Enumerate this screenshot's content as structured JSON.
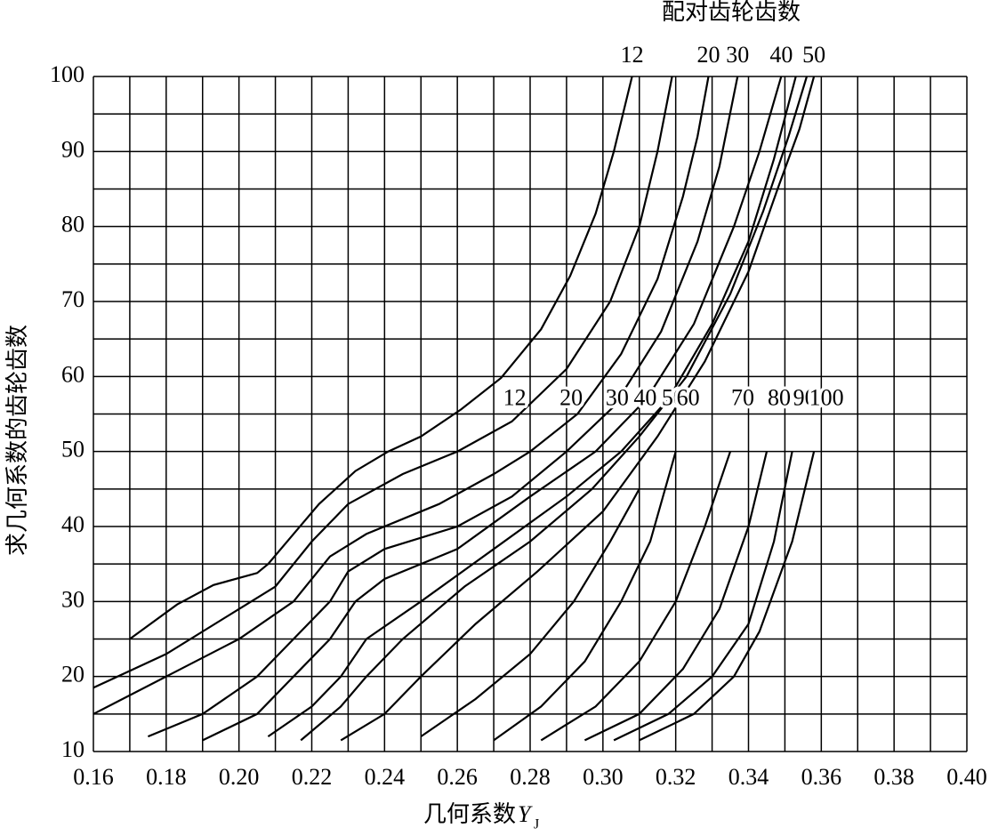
{
  "chart_data": {
    "type": "line",
    "title": "配对齿轮齿数",
    "xlabel": "几何系数",
    "xlabel_symbol": "Y",
    "xlabel_subscript": "J",
    "ylabel": "求几何系数的齿轮齿数",
    "xlim": [
      0.16,
      0.4
    ],
    "ylim": [
      10,
      100
    ],
    "xticks": [
      0.16,
      0.18,
      {
        "value": 0.2,
        "label": "0.20"
      },
      0.22,
      0.24,
      0.26,
      0.28,
      {
        "value": 0.3,
        "label": "0.30"
      },
      0.32,
      0.34,
      0.36,
      0.38,
      {
        "value": 0.4,
        "label": "0.40"
      }
    ],
    "minor_xticks": [
      0.17,
      0.19,
      0.21,
      0.23,
      0.25,
      0.27,
      0.29,
      0.31,
      0.33,
      0.35,
      0.37,
      0.39
    ],
    "yticks": [
      10,
      20,
      30,
      40,
      50,
      60,
      70,
      80,
      90,
      100
    ],
    "minor_yticks": [
      15,
      25,
      35,
      45,
      55,
      65,
      75,
      85,
      95
    ],
    "grid": true,
    "color": "#000000",
    "series": [
      {
        "name": "12",
        "mid_label": "12",
        "x": [
          0.17,
          0.183,
          0.193,
          0.205,
          0.208,
          0.215,
          0.222,
          0.232,
          0.241,
          0.25,
          0.261,
          0.272,
          0.283,
          0.291,
          0.298,
          0.303,
          0.308
        ],
        "values": [
          25,
          29.6,
          32.2,
          33.8,
          35,
          39,
          43,
          47.4,
          50,
          52,
          55.6,
          59.8,
          66.3,
          73.4,
          81.7,
          90,
          100
        ]
      },
      {
        "mid_label": "20",
        "x": [
          0.16,
          0.18,
          0.2,
          0.21,
          0.22,
          0.23,
          0.245,
          0.26,
          0.275,
          0.29,
          0.302,
          0.31,
          0.315,
          0.319
        ],
        "values": [
          18.5,
          23,
          29,
          32,
          38,
          43,
          47,
          50,
          54,
          61,
          70,
          80,
          90,
          100
        ]
      },
      {
        "name": "20",
        "mid_label": "30",
        "x": [
          0.16,
          0.18,
          0.2,
          0.215,
          0.225,
          0.235,
          0.255,
          0.27,
          0.28,
          0.293,
          0.305,
          0.315,
          0.322,
          0.326,
          0.329
        ],
        "values": [
          15,
          20,
          25,
          30,
          36,
          39,
          43,
          47,
          50,
          55,
          63,
          73,
          84,
          92,
          100
        ]
      },
      {
        "name": "30",
        "mid_label": "40",
        "x": [
          0.175,
          0.19,
          0.205,
          0.215,
          0.225,
          0.23,
          0.24,
          0.26,
          0.275,
          0.29,
          0.303,
          0.316,
          0.326,
          0.332,
          0.337
        ],
        "values": [
          12,
          15,
          20,
          25,
          30,
          34,
          37,
          40,
          44,
          50,
          56,
          66,
          78,
          88,
          100
        ]
      },
      {
        "name": "40",
        "mid_label": "50",
        "x": [
          0.19,
          0.205,
          0.215,
          0.225,
          0.232,
          0.24,
          0.26,
          0.28,
          0.298,
          0.312,
          0.325,
          0.336,
          0.343,
          0.349
        ],
        "values": [
          11.5,
          15,
          20,
          25,
          30,
          33,
          37,
          44,
          50,
          57,
          67,
          80,
          90,
          100
        ]
      },
      {
        "x": [
          0.208,
          0.22,
          0.228,
          0.235,
          0.25,
          0.27,
          0.29,
          0.305,
          0.318,
          0.33,
          0.34,
          0.347,
          0.353
        ],
        "values": [
          12,
          16,
          20,
          25,
          30,
          37,
          44,
          50,
          57,
          67,
          78,
          89,
          100
        ]
      },
      {
        "x": [
          0.217,
          0.228,
          0.235,
          0.245,
          0.262,
          0.28,
          0.297,
          0.31,
          0.323,
          0.335,
          0.344,
          0.351,
          0.356
        ],
        "values": [
          11.5,
          16,
          20,
          25,
          32,
          38,
          45,
          52,
          60,
          71,
          82,
          92,
          100
        ]
      },
      {
        "name": "50",
        "x": [
          0.228,
          0.24,
          0.25,
          0.265,
          0.282,
          0.3,
          0.315,
          0.328,
          0.34,
          0.348,
          0.354,
          0.358
        ],
        "values": [
          11.5,
          15,
          20,
          27,
          34,
          42,
          52,
          62,
          74,
          85,
          93,
          100
        ]
      },
      {
        "x": [
          0.25,
          0.265,
          0.28,
          0.292,
          0.302,
          0.31
        ],
        "values": [
          12,
          17,
          23,
          30,
          38,
          45
        ]
      },
      {
        "mid_label": "60",
        "x": [
          0.27,
          0.283,
          0.295,
          0.305,
          0.313,
          0.32
        ],
        "values": [
          11.5,
          16,
          22,
          30,
          38,
          50
        ]
      },
      {
        "mid_label": "70",
        "x": [
          0.283,
          0.298,
          0.31,
          0.32,
          0.328,
          0.335
        ],
        "values": [
          11.5,
          16,
          22,
          30,
          40,
          50
        ]
      },
      {
        "mid_label": "80",
        "x": [
          0.295,
          0.31,
          0.322,
          0.332,
          0.34,
          0.345
        ],
        "values": [
          11.5,
          15,
          21,
          29,
          40,
          50
        ]
      },
      {
        "mid_label": "90",
        "x": [
          0.303,
          0.318,
          0.33,
          0.34,
          0.347,
          0.352
        ],
        "values": [
          11.5,
          15,
          20,
          27,
          38,
          50
        ]
      },
      {
        "mid_label": "100",
        "x": [
          0.31,
          0.325,
          0.336,
          0.343,
          0.352,
          0.358
        ],
        "values": [
          11.5,
          15,
          20,
          26,
          38,
          50
        ]
      }
    ]
  }
}
